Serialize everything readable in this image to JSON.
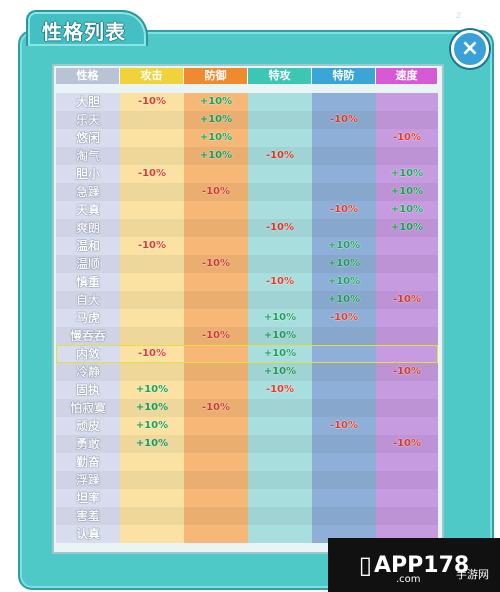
{
  "window": {
    "title": "性格列表",
    "corner_mark": "z",
    "close_label": "×"
  },
  "columns": [
    {
      "label": "性格",
      "color": "#b9c3d6"
    },
    {
      "label": "攻击",
      "color": "#f2d23a"
    },
    {
      "label": "防御",
      "color": "#f08a2e"
    },
    {
      "label": "特攻",
      "color": "#3cc7b5"
    },
    {
      "label": "特防",
      "color": "#3aa6d8"
    },
    {
      "label": "速度",
      "color": "#d65ad6"
    }
  ],
  "column_fills": [
    "#d8dcef",
    "#fbe2a2",
    "#f7b777",
    "#a8dede",
    "#8eb0d8",
    "#c79be0"
  ],
  "highlight_row": 14,
  "rows": [
    {
      "name": "大胆",
      "cells": [
        "-10%",
        "+10%",
        "",
        "",
        ""
      ]
    },
    {
      "name": "乐天",
      "cells": [
        "",
        "+10%",
        "",
        "-10%",
        ""
      ]
    },
    {
      "name": "悠闲",
      "cells": [
        "",
        "+10%",
        "",
        "",
        "-10%"
      ]
    },
    {
      "name": "淘气",
      "cells": [
        "",
        "+10%",
        "-10%",
        "",
        ""
      ]
    },
    {
      "name": "胆小",
      "cells": [
        "-10%",
        "",
        "",
        "",
        "+10%"
      ]
    },
    {
      "name": "急躁",
      "cells": [
        "",
        "-10%",
        "",
        "",
        "+10%"
      ]
    },
    {
      "name": "天真",
      "cells": [
        "",
        "",
        "",
        "-10%",
        "+10%"
      ]
    },
    {
      "name": "爽朗",
      "cells": [
        "",
        "",
        "-10%",
        "",
        "+10%"
      ]
    },
    {
      "name": "温和",
      "cells": [
        "-10%",
        "",
        "",
        "+10%",
        ""
      ]
    },
    {
      "name": "温顺",
      "cells": [
        "",
        "-10%",
        "",
        "+10%",
        ""
      ]
    },
    {
      "name": "慎重",
      "cells": [
        "",
        "",
        "-10%",
        "+10%",
        ""
      ]
    },
    {
      "name": "自大",
      "cells": [
        "",
        "",
        "",
        "+10%",
        "-10%"
      ]
    },
    {
      "name": "马虎",
      "cells": [
        "",
        "",
        "+10%",
        "-10%",
        ""
      ]
    },
    {
      "name": "慢吞吞",
      "cells": [
        "",
        "-10%",
        "+10%",
        "",
        ""
      ]
    },
    {
      "name": "内敛",
      "cells": [
        "-10%",
        "",
        "+10%",
        "",
        ""
      ]
    },
    {
      "name": "冷静",
      "cells": [
        "",
        "",
        "+10%",
        "",
        "-10%"
      ]
    },
    {
      "name": "固执",
      "cells": [
        "+10%",
        "",
        "-10%",
        "",
        ""
      ]
    },
    {
      "name": "怕寂寞",
      "cells": [
        "+10%",
        "-10%",
        "",
        "",
        ""
      ]
    },
    {
      "name": "顽皮",
      "cells": [
        "+10%",
        "",
        "",
        "-10%",
        ""
      ]
    },
    {
      "name": "勇敢",
      "cells": [
        "+10%",
        "",
        "",
        "",
        "-10%"
      ]
    },
    {
      "name": "勤奋",
      "cells": [
        "",
        "",
        "",
        "",
        ""
      ]
    },
    {
      "name": "浮躁",
      "cells": [
        "",
        "",
        "",
        "",
        ""
      ]
    },
    {
      "name": "坦率",
      "cells": [
        "",
        "",
        "",
        "",
        ""
      ]
    },
    {
      "name": "害羞",
      "cells": [
        "",
        "",
        "",
        "",
        ""
      ]
    },
    {
      "name": "认真",
      "cells": [
        "",
        "",
        "",
        "",
        ""
      ]
    }
  ],
  "watermark": {
    "brand": "APP178",
    "site": "手游网",
    "domain": ".com"
  }
}
